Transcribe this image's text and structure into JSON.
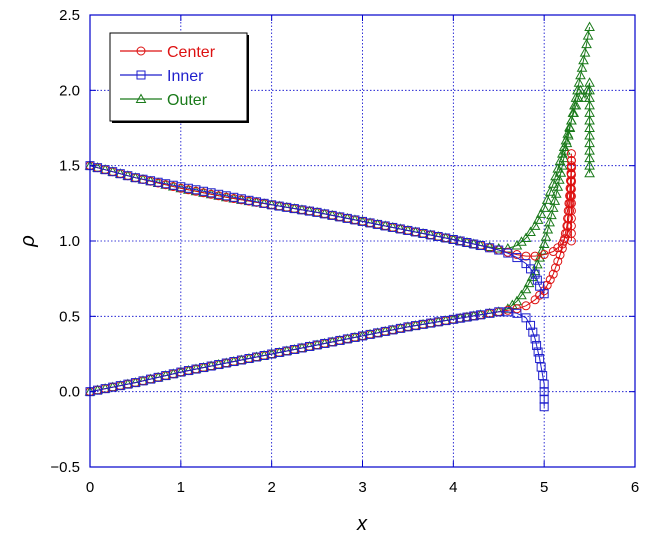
{
  "chart_data": {
    "type": "line",
    "title": "",
    "xlabel": "x",
    "ylabel": "ρ",
    "xlim": [
      0,
      6
    ],
    "ylim": [
      -0.5,
      2.5
    ],
    "x_ticks": [
      0,
      1,
      2,
      3,
      4,
      5,
      6
    ],
    "x_tick_labels": [
      "0",
      "1",
      "2",
      "3",
      "4",
      "5",
      "6"
    ],
    "y_ticks": [
      -0.5,
      0,
      0.5,
      1,
      1.5,
      2,
      2.5
    ],
    "y_tick_labels": [
      "−0.5",
      "0.0",
      "0.5",
      "1.0",
      "1.5",
      "2.0",
      "2.5"
    ],
    "grid": true,
    "legend_position": "top-left",
    "frame_color": "#0000cc",
    "grid_color": "#0000cc",
    "series": [
      {
        "name": "Center",
        "color": "#dd1111",
        "marker": "circle",
        "branches": [
          [
            [
              0.0,
              1.5
            ],
            [
              0.5,
              1.42
            ],
            [
              1.0,
              1.35
            ],
            [
              1.5,
              1.29
            ],
            [
              2.0,
              1.24
            ],
            [
              2.5,
              1.19
            ],
            [
              3.0,
              1.13
            ],
            [
              3.5,
              1.07
            ],
            [
              4.0,
              1.01
            ],
            [
              4.3,
              0.97
            ],
            [
              4.5,
              0.94
            ],
            [
              4.7,
              0.91
            ],
            [
              4.8,
              0.9
            ],
            [
              4.9,
              0.9
            ],
            [
              5.0,
              0.91
            ],
            [
              5.1,
              0.93
            ],
            [
              5.2,
              0.98
            ],
            [
              5.25,
              1.05
            ],
            [
              5.28,
              1.2
            ],
            [
              5.3,
              1.4
            ],
            [
              5.3,
              1.58
            ],
            [
              5.3,
              1.25
            ],
            [
              5.3,
              1.0
            ]
          ],
          [
            [
              0.0,
              0.0
            ],
            [
              0.5,
              0.06
            ],
            [
              1.0,
              0.13
            ],
            [
              1.5,
              0.19
            ],
            [
              2.0,
              0.25
            ],
            [
              2.5,
              0.31
            ],
            [
              3.0,
              0.37
            ],
            [
              3.5,
              0.43
            ],
            [
              4.0,
              0.48
            ],
            [
              4.3,
              0.51
            ],
            [
              4.5,
              0.53
            ],
            [
              4.7,
              0.55
            ],
            [
              4.8,
              0.57
            ],
            [
              4.9,
              0.61
            ],
            [
              5.0,
              0.67
            ],
            [
              5.1,
              0.78
            ],
            [
              5.2,
              0.95
            ],
            [
              5.25,
              1.1
            ],
            [
              5.28,
              1.3
            ],
            [
              5.3,
              1.5
            ]
          ]
        ]
      },
      {
        "name": "Inner",
        "color": "#1f1fcc",
        "marker": "square",
        "branches": [
          [
            [
              0.0,
              1.5
            ],
            [
              0.5,
              1.42
            ],
            [
              1.0,
              1.36
            ],
            [
              1.5,
              1.3
            ],
            [
              2.0,
              1.24
            ],
            [
              2.5,
              1.19
            ],
            [
              3.0,
              1.13
            ],
            [
              3.5,
              1.07
            ],
            [
              4.0,
              1.01
            ],
            [
              4.3,
              0.97
            ],
            [
              4.5,
              0.94
            ],
            [
              4.6,
              0.92
            ],
            [
              4.7,
              0.89
            ],
            [
              4.8,
              0.85
            ],
            [
              4.9,
              0.78
            ],
            [
              4.95,
              0.7
            ],
            [
              5.0,
              0.65
            ]
          ],
          [
            [
              0.0,
              0.0
            ],
            [
              0.5,
              0.06
            ],
            [
              1.0,
              0.13
            ],
            [
              1.5,
              0.19
            ],
            [
              2.0,
              0.25
            ],
            [
              2.5,
              0.31
            ],
            [
              3.0,
              0.37
            ],
            [
              3.5,
              0.43
            ],
            [
              4.0,
              0.48
            ],
            [
              4.3,
              0.51
            ],
            [
              4.5,
              0.53
            ],
            [
              4.6,
              0.53
            ],
            [
              4.7,
              0.52
            ],
            [
              4.8,
              0.49
            ],
            [
              4.85,
              0.44
            ],
            [
              4.9,
              0.35
            ],
            [
              4.95,
              0.22
            ],
            [
              5.0,
              0.05
            ],
            [
              5.0,
              -0.1
            ]
          ]
        ]
      },
      {
        "name": "Outer",
        "color": "#1a7a1a",
        "marker": "triangle",
        "branches": [
          [
            [
              0.0,
              1.5
            ],
            [
              0.5,
              1.42
            ],
            [
              1.0,
              1.35
            ],
            [
              1.5,
              1.29
            ],
            [
              2.0,
              1.24
            ],
            [
              2.5,
              1.19
            ],
            [
              3.0,
              1.13
            ],
            [
              3.5,
              1.07
            ],
            [
              4.0,
              1.01
            ],
            [
              4.3,
              0.97
            ],
            [
              4.5,
              0.95
            ],
            [
              4.6,
              0.95
            ],
            [
              4.7,
              0.97
            ],
            [
              4.8,
              1.02
            ],
            [
              4.9,
              1.1
            ],
            [
              5.0,
              1.22
            ],
            [
              5.1,
              1.38
            ],
            [
              5.2,
              1.58
            ],
            [
              5.3,
              1.8
            ],
            [
              5.4,
              2.0
            ],
            [
              5.45,
              1.95
            ],
            [
              5.5,
              2.05
            ],
            [
              5.5,
              1.8
            ],
            [
              5.5,
              1.45
            ]
          ],
          [
            [
              0.0,
              0.0
            ],
            [
              0.5,
              0.06
            ],
            [
              1.0,
              0.13
            ],
            [
              1.5,
              0.19
            ],
            [
              2.0,
              0.25
            ],
            [
              2.5,
              0.31
            ],
            [
              3.0,
              0.37
            ],
            [
              3.5,
              0.43
            ],
            [
              4.0,
              0.48
            ],
            [
              4.3,
              0.51
            ],
            [
              4.5,
              0.53
            ],
            [
              4.6,
              0.55
            ],
            [
              4.7,
              0.6
            ],
            [
              4.8,
              0.68
            ],
            [
              4.9,
              0.8
            ],
            [
              5.0,
              0.98
            ],
            [
              5.1,
              1.22
            ],
            [
              5.2,
              1.5
            ],
            [
              5.3,
              1.8
            ],
            [
              5.4,
              2.1
            ],
            [
              5.45,
              2.25
            ],
            [
              5.5,
              2.42
            ]
          ]
        ]
      }
    ]
  }
}
